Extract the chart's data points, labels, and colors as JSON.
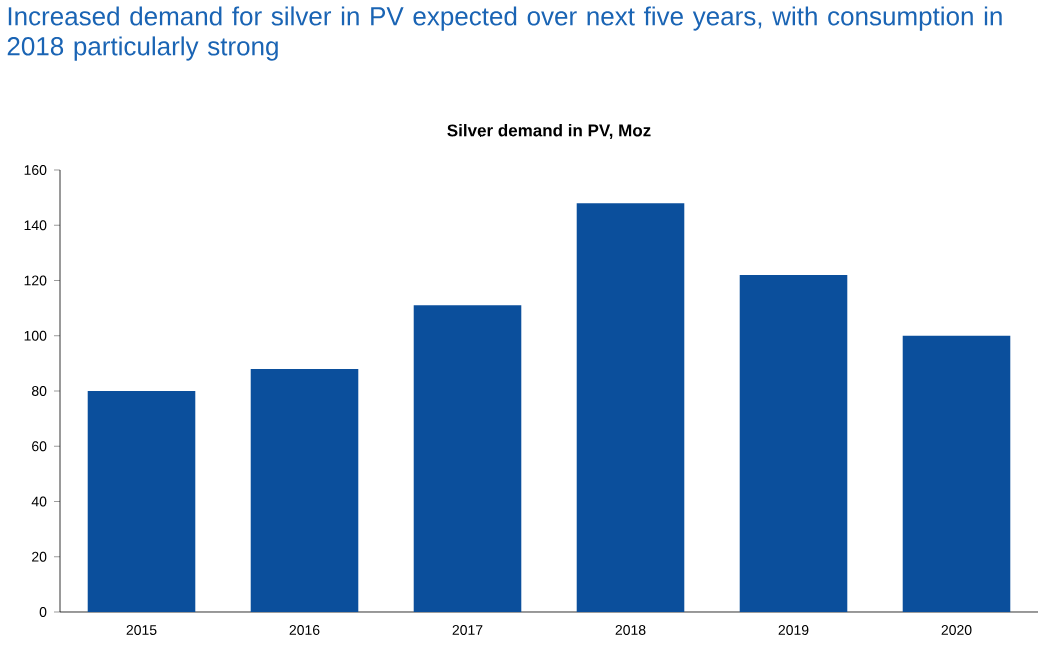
{
  "chart_data": {
    "type": "bar",
    "title": "Increased demand for silver in PV expected over next five years, with consumption in 2018 particularly strong",
    "subtitle": "Silver demand in PV, Moz",
    "categories": [
      "2015",
      "2016",
      "2017",
      "2018",
      "2019",
      "2020"
    ],
    "values": [
      80,
      88,
      111,
      148,
      122,
      100
    ],
    "color": "#0b4f9c",
    "ylim": [
      0,
      160
    ],
    "yticks": [
      0,
      20,
      40,
      60,
      80,
      100,
      120,
      140,
      160
    ],
    "grid": false
  }
}
